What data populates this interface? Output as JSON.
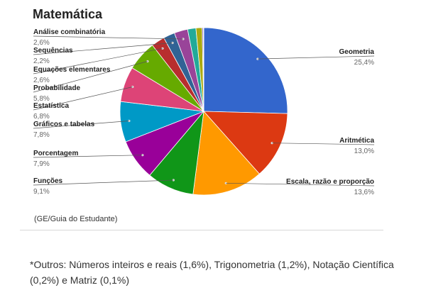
{
  "chart_data": {
    "type": "pie",
    "title": "Matemática",
    "slices": [
      {
        "name": "Geometria",
        "value": 25.4,
        "label": "25,4%",
        "color": "#3366cc"
      },
      {
        "name": "Aritmética",
        "value": 13.0,
        "label": "13,0%",
        "color": "#dc3912"
      },
      {
        "name": "Escala, razão e proporção",
        "value": 13.6,
        "label": "13,6%",
        "color": "#ff9900"
      },
      {
        "name": "Funções",
        "value": 9.1,
        "label": "9,1%",
        "color": "#109618"
      },
      {
        "name": "Porcentagem",
        "value": 7.9,
        "label": "7,9%",
        "color": "#990099"
      },
      {
        "name": "Gráficos e tabelas",
        "value": 7.8,
        "label": "7,8%",
        "color": "#0099c6"
      },
      {
        "name": "Estatística",
        "value": 6.8,
        "label": "6,8%",
        "color": "#dd4477"
      },
      {
        "name": "Probabilidade",
        "value": 5.8,
        "label": "5,8%",
        "color": "#66aa00"
      },
      {
        "name": "Equações elementares",
        "value": 2.6,
        "label": "2,6%",
        "color": "#b82e2e"
      },
      {
        "name": "Sequências",
        "value": 2.2,
        "label": "2,2%",
        "color": "#316395"
      },
      {
        "name": "Análise combinatória",
        "value": 2.6,
        "label": "2,6%",
        "color": "#994499"
      },
      {
        "name": "Números inteiros e reais",
        "value": 1.6,
        "color": "#22aa99"
      },
      {
        "name": "Trigonometria",
        "value": 1.2,
        "color": "#aaaa11"
      },
      {
        "name": "Notação Científica",
        "value": 0.2,
        "color": "#6633cc"
      },
      {
        "name": "Matriz",
        "value": 0.1,
        "color": "#e67300"
      }
    ]
  },
  "source": "(GE/Guia do Estudante)",
  "footnote": "*Outros: Números inteiros e reais (1,6%), Trigonometria (1,2%), Notação Científica (0,2%) e Matriz (0,1%)"
}
